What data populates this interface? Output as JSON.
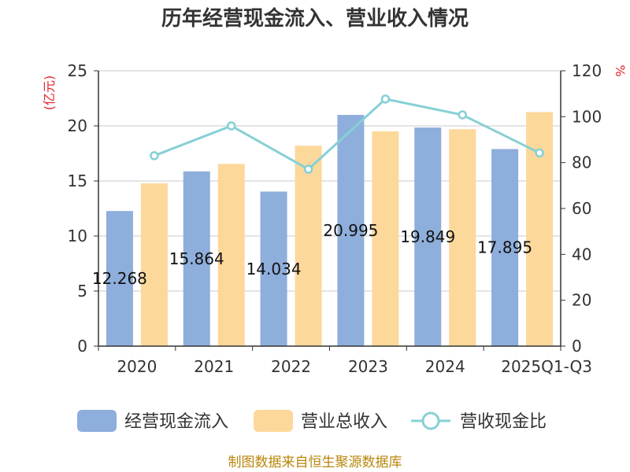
{
  "chart_data": {
    "type": "bar",
    "title": "历年经营现金流入、营业收入情况",
    "categories": [
      "2020",
      "2021",
      "2022",
      "2023",
      "2024",
      "2025Q1-Q3"
    ],
    "left_axis": {
      "unit": "(亿元)",
      "ylim": [
        0,
        25
      ],
      "ticks": [
        0,
        5,
        10,
        15,
        20,
        25
      ]
    },
    "right_axis": {
      "unit": "%",
      "ylim": [
        0,
        120
      ],
      "ticks": [
        0,
        20,
        40,
        60,
        80,
        100,
        120
      ]
    },
    "series": [
      {
        "name": "经营现金流入",
        "type": "bar",
        "axis": "left",
        "color": "#8eaedb",
        "values": [
          12.268,
          15.864,
          14.034,
          20.995,
          19.849,
          17.895
        ],
        "labels": [
          "12.268",
          "15.864",
          "14.034",
          "20.995",
          "19.849",
          "17.895"
        ]
      },
      {
        "name": "营业总收入",
        "type": "bar",
        "axis": "left",
        "color": "#fdd89b",
        "values": [
          14.78,
          16.55,
          18.2,
          19.5,
          19.7,
          21.25
        ]
      },
      {
        "name": "营收现金比",
        "type": "line",
        "axis": "right",
        "color": "#86d0d6",
        "values": [
          83.0,
          96.0,
          77.1,
          107.7,
          100.8,
          84.2
        ]
      }
    ],
    "grid": true,
    "legend_position": "bottom"
  },
  "source": "制图数据来自恒生聚源数据库"
}
